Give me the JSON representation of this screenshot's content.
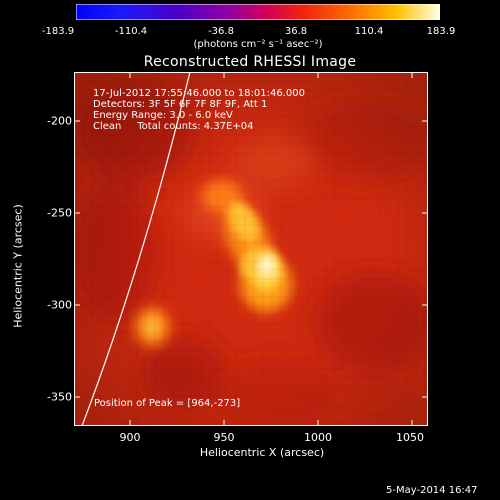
{
  "colorbar": {
    "ticks": [
      "-183.9",
      "-110.4",
      "-36.8",
      "36.8",
      "110.4",
      "183.9"
    ],
    "units": "(photons cm⁻² s⁻¹ asec⁻²)"
  },
  "title": "Reconstructed RHESSI Image",
  "annotation": {
    "line1": "17-Jul-2012 17:55:46.000 to 18:01:46.000",
    "line2": "Detectors: 3F 5F 6F 7F 8F 9F, Att 1",
    "line3": "Energy Range: 3.0 - 6.0 keV",
    "line4": "Clean     Total counts: 4.37E+04",
    "peak": "Position of Peak = [964,-273]"
  },
  "axes": {
    "xlabel": "Heliocentric X (arcsec)",
    "ylabel": "Heliocentric Y (arcsec)",
    "xticks": [
      "900",
      "950",
      "1000",
      "1050"
    ],
    "yticks": [
      "-200",
      "-250",
      "-300",
      "-350"
    ]
  },
  "timestamp": "5-May-2014 16:47"
}
